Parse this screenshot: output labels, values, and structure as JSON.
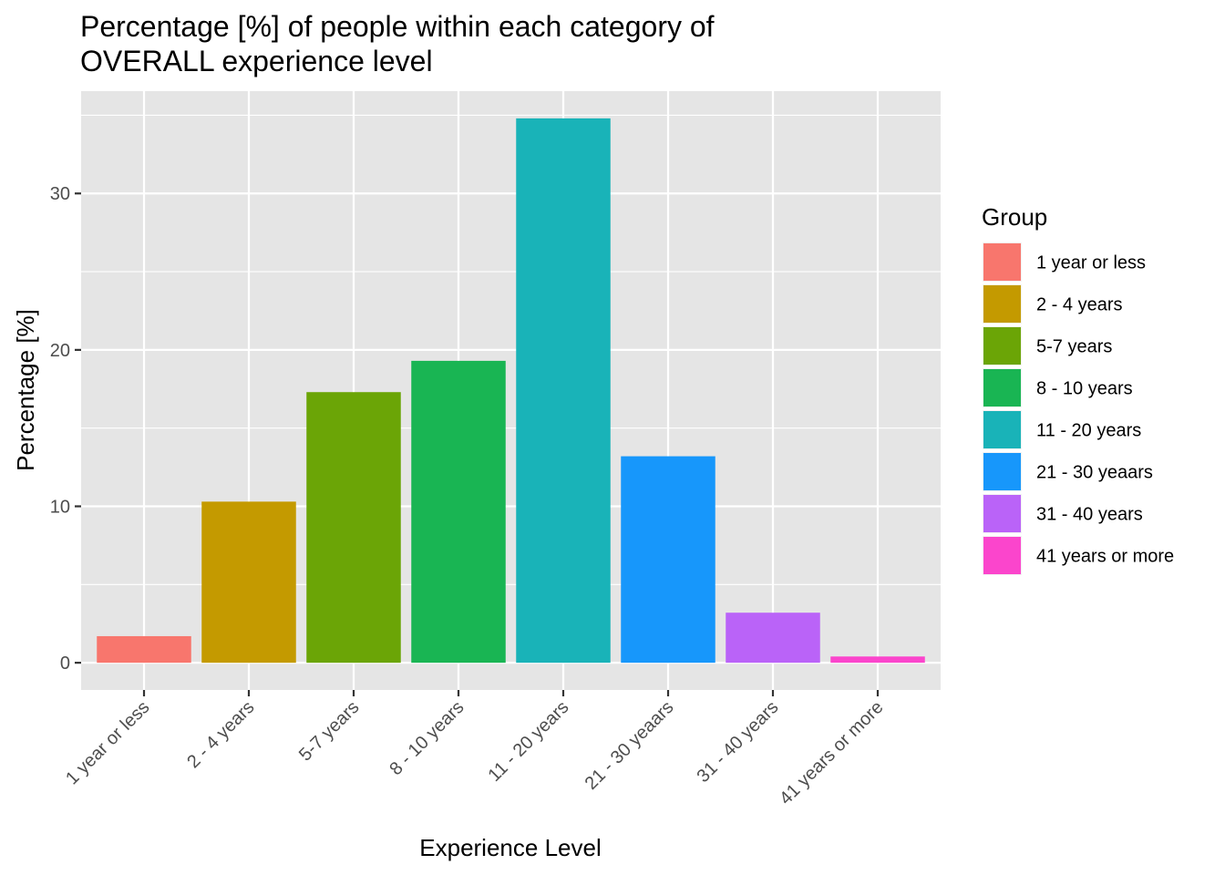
{
  "chart_data": {
    "type": "bar",
    "title_lines": [
      "Percentage [%] of people within each category of",
      "OVERALL experience level"
    ],
    "xlabel": "Experience Level",
    "ylabel": "Percentage [%]",
    "categories": [
      "1 year or less",
      "2 - 4 years",
      "5-7 years",
      "8 - 10 years",
      "11 - 20 years",
      "21 - 30 yeaars",
      "31 - 40 years",
      "41 years or more"
    ],
    "values": [
      1.7,
      10.3,
      17.3,
      19.3,
      34.8,
      13.2,
      3.2,
      0.4
    ],
    "colors": [
      "#F8766D",
      "#C49A00",
      "#6BA506",
      "#19B553",
      "#19B3B8",
      "#1797FB",
      "#BA63F8",
      "#FB45CC"
    ],
    "ylim": [
      -1.74,
      36.54
    ],
    "yticks": [
      0,
      10,
      20,
      30
    ],
    "ytick_labels": [
      "0",
      "10",
      "20",
      "30"
    ],
    "grid": true,
    "panel_color": "#E5E5E5",
    "legend": {
      "title": "Group",
      "position": "right",
      "entries": [
        "1 year or less",
        "2 - 4 years",
        "5-7 years",
        "8 - 10 years",
        "11 - 20 years",
        "21 - 30 yeaars",
        "31 - 40 years",
        "41 years or more"
      ]
    }
  }
}
